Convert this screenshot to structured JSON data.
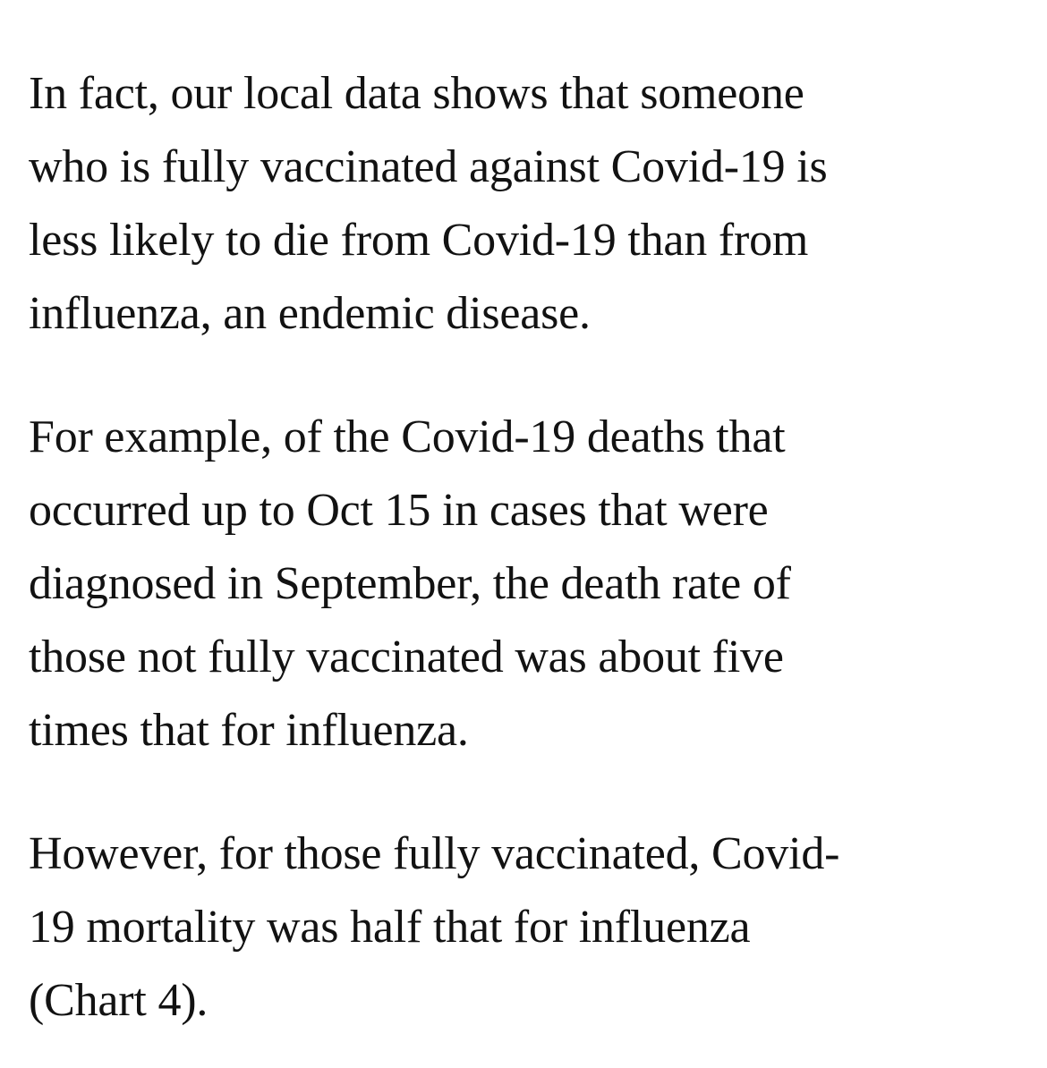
{
  "article": {
    "paragraphs": [
      {
        "lines": [
          "In fact, our local data shows that someone",
          "who is fully vaccinated against Covid-19 is",
          "less likely to die from Covid-19 than from",
          "influenza, an endemic disease."
        ]
      },
      {
        "lines": [
          "For example, of the Covid-19 deaths that",
          "occurred up to Oct 15 in cases that were",
          "diagnosed in September, the death rate of",
          "those not fully vaccinated was about five",
          "times that for influenza."
        ]
      },
      {
        "lines": [
          "However, for those fully vaccinated, Covid-",
          "19 mortality was half that for influenza",
          "(Chart 4)."
        ]
      }
    ]
  }
}
